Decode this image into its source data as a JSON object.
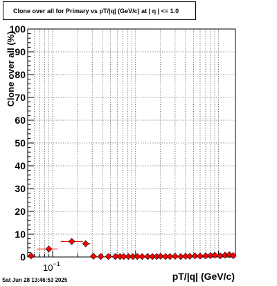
{
  "datestamp": "Sat Jun 28 13:46:53 2025",
  "chart_data": {
    "type": "scatter",
    "title": "Clone  over all for Primary vs pT/|q| (GeV/c) at |  η  | <= 1.0",
    "xlabel": "pT/|q| (GeV/c)",
    "ylabel": "Clone  over all (%)",
    "x_scale": "log",
    "xlim": [
      0.05,
      16
    ],
    "ylim": [
      0,
      100
    ],
    "y_ticks": [
      0,
      10,
      20,
      30,
      40,
      50,
      60,
      70,
      80,
      90,
      100
    ],
    "x_tick_labels": [
      {
        "value": 0.1,
        "base": "10",
        "exp": "−1"
      }
    ],
    "grid": true,
    "marker_color": "#ff0000",
    "points": [
      {
        "x": 0.055,
        "y": 0.5,
        "xlo": 0.05,
        "xhi": 0.06
      },
      {
        "x": 0.09,
        "y": 3.5,
        "xlo": 0.065,
        "xhi": 0.115
      },
      {
        "x": 0.17,
        "y": 6.8,
        "xlo": 0.125,
        "xhi": 0.23
      },
      {
        "x": 0.25,
        "y": 5.8,
        "xlo": 0.235,
        "xhi": 0.285
      },
      {
        "x": 0.31,
        "y": 0.3
      },
      {
        "x": 0.38,
        "y": 0.2
      },
      {
        "x": 0.47,
        "y": 0.2
      },
      {
        "x": 0.57,
        "y": 0.2
      },
      {
        "x": 0.65,
        "y": 0.2
      },
      {
        "x": 0.72,
        "y": 0.2
      },
      {
        "x": 0.82,
        "y": 0.2
      },
      {
        "x": 0.93,
        "y": 0.2
      },
      {
        "x": 1.05,
        "y": 0.2
      },
      {
        "x": 1.2,
        "y": 0.2
      },
      {
        "x": 1.4,
        "y": 0.2
      },
      {
        "x": 1.6,
        "y": 0.2
      },
      {
        "x": 1.8,
        "y": 0.2
      },
      {
        "x": 2.0,
        "y": 0.3
      },
      {
        "x": 2.3,
        "y": 0.2
      },
      {
        "x": 2.6,
        "y": 0.2
      },
      {
        "x": 3.0,
        "y": 0.3
      },
      {
        "x": 3.5,
        "y": 0.2
      },
      {
        "x": 4.0,
        "y": 0.3
      },
      {
        "x": 4.5,
        "y": 0.3
      },
      {
        "x": 5.2,
        "y": 0.5
      },
      {
        "x": 6.0,
        "y": 0.4
      },
      {
        "x": 7.0,
        "y": 0.5
      },
      {
        "x": 8.0,
        "y": 0.6
      },
      {
        "x": 9.0,
        "y": 0.8
      },
      {
        "x": 10.5,
        "y": 0.5
      },
      {
        "x": 12.0,
        "y": 0.8
      },
      {
        "x": 13.5,
        "y": 1.0
      },
      {
        "x": 15.0,
        "y": 0.6
      }
    ]
  }
}
